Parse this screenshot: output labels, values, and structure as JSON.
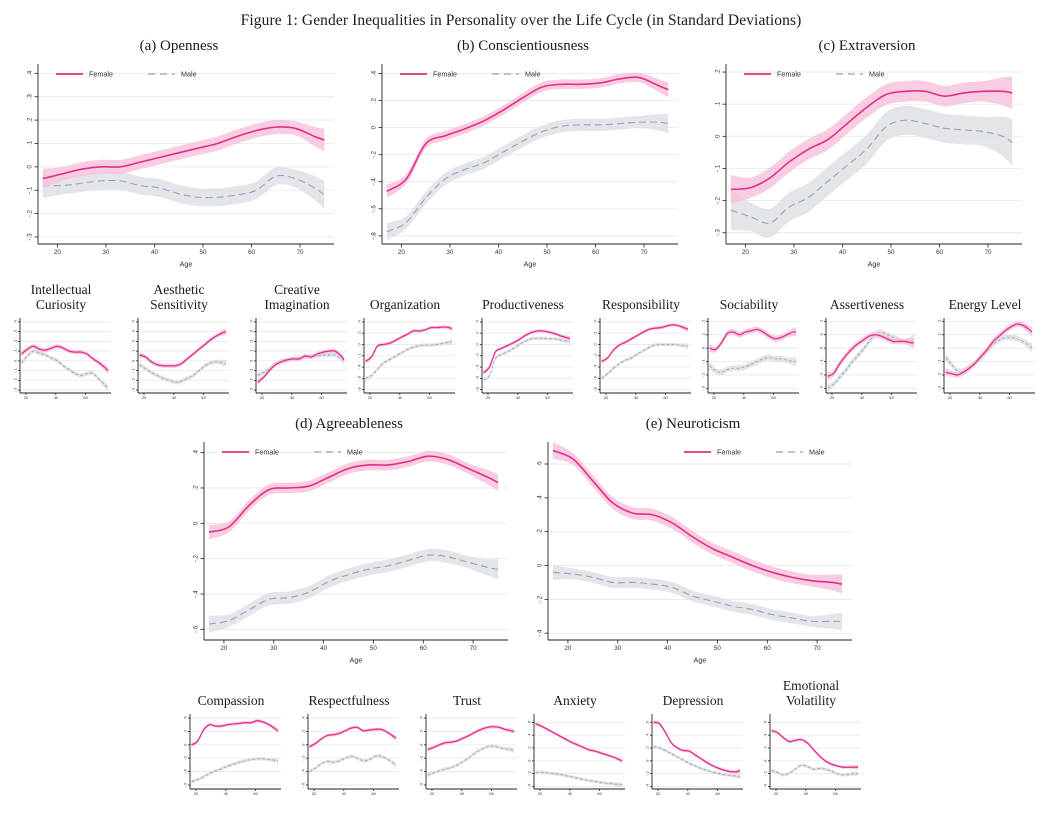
{
  "figure_title": "Figure 1: Gender Inequalities in Personality over the Life Cycle (in Standard Deviations)",
  "legend": {
    "female_label": "Female",
    "male_label": "Male"
  },
  "colors": {
    "female_line": "#e22e88",
    "female_band": "#f8c0d9",
    "male_line": "#92a5b6",
    "male_band": "#dcdfe4",
    "grid": "#e9e9ed",
    "axis": "#222222",
    "tick_text": "#333333"
  },
  "chart_data": {
    "type": "line",
    "x_label": "Age",
    "series_names": [
      "Female",
      "Male"
    ],
    "x": [
      17,
      21,
      25,
      29,
      33,
      37,
      41,
      45,
      49,
      53,
      57,
      61,
      65,
      69,
      73,
      75
    ],
    "x_range": [
      16,
      77
    ],
    "x_ticks_main": [
      20,
      30,
      40,
      50,
      60,
      70
    ],
    "x_ticks_facet": [
      20,
      40,
      60
    ],
    "grid": true,
    "panels": [
      {
        "id": "openness",
        "title": "(a) Openness",
        "legend_pos": "top-left",
        "ylim": [
          -0.33,
          0.44
        ],
        "yticks": [
          ".4",
          ".3",
          ".2",
          ".1",
          "0",
          "-.1",
          "-.2",
          "-.3"
        ],
        "female": [
          -0.05,
          -0.03,
          -0.01,
          0.0,
          0.0,
          0.02,
          0.04,
          0.06,
          0.08,
          0.1,
          0.13,
          0.155,
          0.17,
          0.165,
          0.13,
          0.115
        ],
        "male": [
          -0.08,
          -0.08,
          -0.07,
          -0.06,
          -0.06,
          -0.08,
          -0.09,
          -0.115,
          -0.13,
          -0.13,
          -0.12,
          -0.1,
          -0.04,
          -0.05,
          -0.09,
          -0.12
        ],
        "band": [
          0.03,
          0.038
        ],
        "facets": [
          {
            "title": "Intellectual Curiosity",
            "female": [
              0.07,
              0.12,
              0.15,
              0.12,
              0.11,
              0.13,
              0.15,
              0.13,
              0.1,
              0.09,
              0.09,
              0.07,
              0.02,
              -0.02,
              -0.07,
              -0.1
            ],
            "male": [
              -0.02,
              0.05,
              0.1,
              0.08,
              0.06,
              0.03,
              0.0,
              -0.05,
              -0.09,
              -0.13,
              -0.15,
              -0.13,
              -0.13,
              -0.19,
              -0.25,
              -0.28
            ],
            "band": [
              0.022,
              0.022
            ]
          },
          {
            "title": "Aesthetic Sensitivity",
            "female": [
              0.06,
              0.04,
              -0.01,
              -0.04,
              -0.05,
              -0.05,
              -0.05,
              -0.03,
              0.02,
              0.07,
              0.12,
              0.17,
              0.22,
              0.26,
              0.29,
              0.3
            ],
            "male": [
              -0.04,
              -0.08,
              -0.12,
              -0.15,
              -0.18,
              -0.2,
              -0.22,
              -0.21,
              -0.18,
              -0.15,
              -0.1,
              -0.05,
              -0.02,
              -0.01,
              -0.02,
              -0.03
            ],
            "band": [
              0.022,
              0.022
            ]
          },
          {
            "title": "Creative Imagination",
            "female": [
              -0.22,
              -0.17,
              -0.1,
              -0.04,
              -0.01,
              0.01,
              0.02,
              0.02,
              0.05,
              0.04,
              0.07,
              0.09,
              0.1,
              0.1,
              0.05,
              0.01
            ],
            "male": [
              -0.15,
              -0.12,
              -0.08,
              -0.03,
              0.0,
              0.01,
              0.02,
              0.03,
              0.04,
              0.05,
              0.05,
              0.06,
              0.06,
              0.06,
              0.03,
              0.0
            ],
            "band": [
              0.022,
              0.022
            ]
          }
        ]
      },
      {
        "id": "conscientiousness",
        "title": "(b) Conscientiousness",
        "legend_pos": "top-left",
        "ylim": [
          -0.86,
          0.47
        ],
        "yticks": [
          ".4",
          ".2",
          "0",
          "-.2",
          "-.4",
          "-.6",
          "-.8"
        ],
        "female": [
          -0.47,
          -0.38,
          -0.12,
          -0.06,
          -0.01,
          0.05,
          0.13,
          0.22,
          0.3,
          0.32,
          0.32,
          0.33,
          0.36,
          0.37,
          0.31,
          0.28
        ],
        "male": [
          -0.77,
          -0.7,
          -0.52,
          -0.38,
          -0.31,
          -0.26,
          -0.18,
          -0.1,
          -0.03,
          0.01,
          0.02,
          0.02,
          0.03,
          0.04,
          0.04,
          0.03
        ],
        "band": [
          0.035,
          0.045
        ],
        "facets": [
          {
            "title": "Organization",
            "female": [
              -0.3,
              -0.22,
              -0.03,
              0.0,
              0.02,
              0.07,
              0.13,
              0.18,
              0.24,
              0.24,
              0.26,
              0.3,
              0.3,
              0.31,
              0.3,
              0.28
            ],
            "male": [
              -0.6,
              -0.55,
              -0.44,
              -0.33,
              -0.27,
              -0.21,
              -0.15,
              -0.09,
              -0.05,
              -0.02,
              -0.01,
              -0.01,
              0.0,
              0.02,
              0.04,
              0.05
            ],
            "band": [
              0.03,
              0.03
            ]
          },
          {
            "title": "Productiveness",
            "female": [
              -0.5,
              -0.4,
              -0.13,
              -0.07,
              -0.02,
              0.03,
              0.09,
              0.16,
              0.21,
              0.24,
              0.24,
              0.22,
              0.19,
              0.15,
              0.12,
              0.1
            ],
            "male": [
              -0.63,
              -0.55,
              -0.25,
              -0.18,
              -0.13,
              -0.07,
              0.0,
              0.06,
              0.1,
              0.11,
              0.11,
              0.1,
              0.1,
              0.08,
              0.06,
              0.05
            ],
            "band": [
              0.03,
              0.03
            ]
          },
          {
            "title": "Responsibility",
            "female": [
              -0.3,
              -0.24,
              -0.1,
              -0.01,
              0.04,
              0.1,
              0.16,
              0.22,
              0.27,
              0.29,
              0.3,
              0.33,
              0.35,
              0.33,
              0.29,
              0.27
            ],
            "male": [
              -0.6,
              -0.52,
              -0.42,
              -0.34,
              -0.28,
              -0.24,
              -0.17,
              -0.11,
              -0.05,
              -0.01,
              0.0,
              0.0,
              0.0,
              -0.01,
              -0.02,
              -0.03
            ],
            "band": [
              0.03,
              0.03
            ]
          }
        ]
      },
      {
        "id": "extraversion",
        "title": "(c) Extraversion",
        "legend_pos": "top-left",
        "ylim": [
          -0.335,
          0.225
        ],
        "yticks": [
          ".2",
          ".1",
          "0",
          "-.1",
          "-.2",
          "-.3"
        ],
        "female": [
          -0.165,
          -0.16,
          -0.13,
          -0.08,
          -0.04,
          -0.01,
          0.04,
          0.09,
          0.13,
          0.14,
          0.14,
          0.125,
          0.135,
          0.14,
          0.14,
          0.135
        ],
        "male": [
          -0.23,
          -0.25,
          -0.27,
          -0.22,
          -0.19,
          -0.14,
          -0.09,
          -0.04,
          0.03,
          0.05,
          0.04,
          0.025,
          0.02,
          0.015,
          0.0,
          -0.02
        ],
        "band": [
          0.032,
          0.045
        ],
        "facets": [
          {
            "title": "Sociability",
            "female": [
              0.0,
              -0.01,
              0.04,
              0.11,
              0.12,
              0.1,
              0.12,
              0.13,
              0.14,
              0.12,
              0.09,
              0.07,
              0.08,
              0.1,
              0.12,
              0.12
            ],
            "male": [
              -0.13,
              -0.17,
              -0.18,
              -0.16,
              -0.15,
              -0.15,
              -0.14,
              -0.12,
              -0.1,
              -0.08,
              -0.07,
              -0.08,
              -0.08,
              -0.09,
              -0.1,
              -0.1
            ],
            "band": [
              0.022,
              0.022
            ]
          },
          {
            "title": "Assertiveness",
            "female": [
              -0.21,
              -0.19,
              -0.12,
              -0.06,
              -0.01,
              0.03,
              0.06,
              0.09,
              0.1,
              0.09,
              0.07,
              0.05,
              0.05,
              0.05,
              0.04,
              0.04
            ],
            "male": [
              -0.3,
              -0.27,
              -0.22,
              -0.17,
              -0.11,
              -0.06,
              -0.01,
              0.05,
              0.1,
              0.12,
              0.1,
              0.08,
              0.06,
              0.05,
              0.06,
              0.07
            ],
            "band": [
              0.022,
              0.022
            ]
          },
          {
            "title": "Energy Level",
            "female": [
              -0.18,
              -0.19,
              -0.2,
              -0.18,
              -0.15,
              -0.11,
              -0.06,
              -0.01,
              0.05,
              0.09,
              0.13,
              0.16,
              0.18,
              0.17,
              0.14,
              0.12
            ],
            "male": [
              -0.07,
              -0.12,
              -0.17,
              -0.17,
              -0.14,
              -0.11,
              -0.07,
              -0.02,
              0.03,
              0.06,
              0.08,
              0.08,
              0.07,
              0.05,
              0.02,
              0.0
            ],
            "band": [
              0.022,
              0.022
            ]
          }
        ]
      },
      {
        "id": "agreeableness",
        "title": "(d) Agreeableness",
        "legend_pos": "top-left",
        "ylim": [
          -0.66,
          0.46
        ],
        "yticks": [
          ".4",
          ".2",
          "0",
          "-.2",
          "-.4",
          "-.6"
        ],
        "female": [
          -0.05,
          -0.02,
          0.1,
          0.19,
          0.2,
          0.21,
          0.26,
          0.31,
          0.33,
          0.33,
          0.35,
          0.38,
          0.36,
          0.31,
          0.26,
          0.23
        ],
        "male": [
          -0.57,
          -0.55,
          -0.49,
          -0.43,
          -0.42,
          -0.39,
          -0.33,
          -0.29,
          -0.26,
          -0.24,
          -0.21,
          -0.18,
          -0.19,
          -0.22,
          -0.25,
          -0.26
        ],
        "band": [
          0.03,
          0.035
        ],
        "facets": [
          {
            "title": "Compassion",
            "female": [
              0.0,
              0.05,
              0.22,
              0.3,
              0.28,
              0.28,
              0.3,
              0.31,
              0.32,
              0.33,
              0.33,
              0.36,
              0.34,
              0.3,
              0.24,
              0.21
            ],
            "male": [
              -0.55,
              -0.52,
              -0.48,
              -0.43,
              -0.39,
              -0.36,
              -0.32,
              -0.29,
              -0.26,
              -0.24,
              -0.22,
              -0.21,
              -0.21,
              -0.22,
              -0.23,
              -0.24
            ],
            "band": [
              0.025,
              0.025
            ]
          },
          {
            "title": "Respectfulness",
            "female": [
              -0.03,
              0.02,
              0.09,
              0.14,
              0.15,
              0.17,
              0.21,
              0.25,
              0.26,
              0.21,
              0.22,
              0.23,
              0.23,
              0.19,
              0.13,
              0.1
            ],
            "male": [
              -0.4,
              -0.35,
              -0.28,
              -0.25,
              -0.26,
              -0.24,
              -0.2,
              -0.17,
              -0.2,
              -0.24,
              -0.22,
              -0.17,
              -0.17,
              -0.21,
              -0.27,
              -0.3
            ],
            "band": [
              0.025,
              0.025
            ]
          },
          {
            "title": "Trust",
            "female": [
              -0.07,
              -0.04,
              0.0,
              0.03,
              0.04,
              0.06,
              0.1,
              0.14,
              0.19,
              0.23,
              0.26,
              0.27,
              0.26,
              0.23,
              0.21,
              0.2
            ],
            "male": [
              -0.45,
              -0.42,
              -0.39,
              -0.36,
              -0.34,
              -0.3,
              -0.25,
              -0.19,
              -0.12,
              -0.07,
              -0.03,
              -0.02,
              -0.04,
              -0.06,
              -0.07,
              -0.09
            ],
            "band": [
              0.025,
              0.025
            ]
          }
        ]
      },
      {
        "id": "neuroticism",
        "title": "(e) Neuroticism",
        "legend_pos": "top-right",
        "ylim": [
          -0.44,
          0.73
        ],
        "yticks": [
          ".6",
          ".4",
          ".2",
          "0",
          "-.2",
          "-.4"
        ],
        "female": [
          0.68,
          0.63,
          0.5,
          0.37,
          0.31,
          0.3,
          0.25,
          0.17,
          0.1,
          0.05,
          0.0,
          -0.04,
          -0.07,
          -0.09,
          -0.1,
          -0.11
        ],
        "male": [
          -0.04,
          -0.05,
          -0.07,
          -0.1,
          -0.1,
          -0.11,
          -0.13,
          -0.18,
          -0.21,
          -0.24,
          -0.26,
          -0.29,
          -0.31,
          -0.33,
          -0.33,
          -0.33
        ],
        "band": [
          0.035,
          0.032
        ],
        "facets": [
          {
            "title": "Anxiety",
            "female": [
              0.58,
              0.54,
              0.49,
              0.44,
              0.39,
              0.34,
              0.29,
              0.25,
              0.21,
              0.17,
              0.15,
              0.12,
              0.09,
              0.06,
              0.02,
              0.0
            ],
            "male": [
              -0.18,
              -0.18,
              -0.19,
              -0.2,
              -0.21,
              -0.23,
              -0.25,
              -0.27,
              -0.29,
              -0.31,
              -0.32,
              -0.34,
              -0.35,
              -0.36,
              -0.37,
              -0.37
            ],
            "band": [
              0.025,
              0.025
            ]
          },
          {
            "title": "Depression",
            "female": [
              0.6,
              0.58,
              0.44,
              0.28,
              0.2,
              0.16,
              0.15,
              0.09,
              0.03,
              -0.03,
              -0.08,
              -0.12,
              -0.15,
              -0.17,
              -0.17,
              -0.15
            ],
            "male": [
              0.22,
              0.2,
              0.16,
              0.11,
              0.06,
              0.01,
              -0.04,
              -0.08,
              -0.12,
              -0.15,
              -0.18,
              -0.2,
              -0.22,
              -0.23,
              -0.24,
              -0.25
            ],
            "band": [
              0.025,
              0.025
            ]
          },
          {
            "title": "Emotional Volatility",
            "female": [
              0.47,
              0.44,
              0.36,
              0.3,
              0.32,
              0.33,
              0.28,
              0.18,
              0.08,
              0.0,
              -0.05,
              -0.08,
              -0.1,
              -0.1,
              -0.1,
              -0.1
            ],
            "male": [
              -0.15,
              -0.18,
              -0.22,
              -0.19,
              -0.13,
              -0.07,
              -0.09,
              -0.13,
              -0.12,
              -0.13,
              -0.16,
              -0.2,
              -0.22,
              -0.21,
              -0.2,
              -0.2
            ],
            "band": [
              0.025,
              0.025
            ]
          }
        ]
      }
    ]
  }
}
